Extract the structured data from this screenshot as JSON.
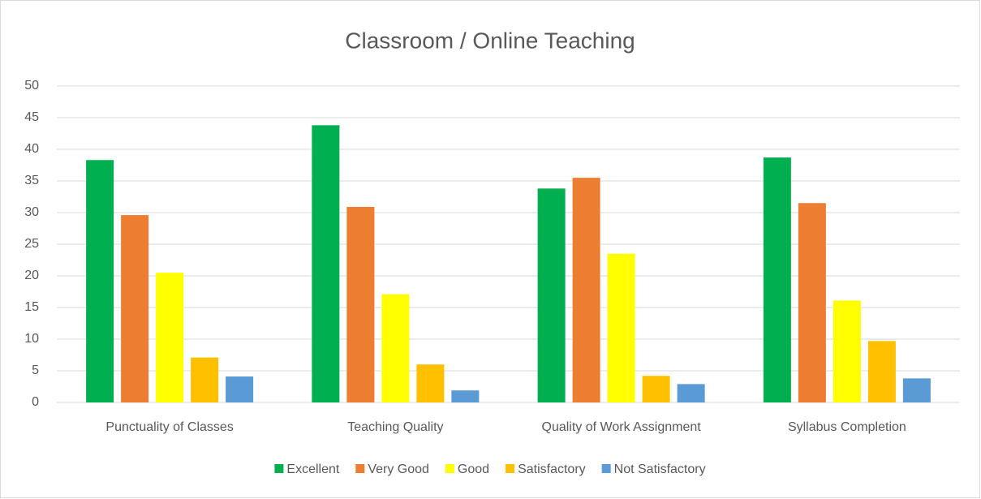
{
  "chart_data": {
    "type": "bar",
    "title": "Classroom / Online Teaching",
    "categories": [
      "Punctuality of Classes",
      "Teaching Quality",
      "Quality of Work Assignment",
      "Syllabus Completion"
    ],
    "series": [
      {
        "name": "Excellent",
        "color": "#00b050",
        "values": [
          38.3,
          43.8,
          33.8,
          38.7
        ]
      },
      {
        "name": "Very Good",
        "color": "#ed7d31",
        "values": [
          29.6,
          30.9,
          35.5,
          31.5
        ]
      },
      {
        "name": "Good",
        "color": "#ffff00",
        "values": [
          20.5,
          17.1,
          23.5,
          16.1
        ]
      },
      {
        "name": "Satisfactory",
        "color": "#ffc000",
        "values": [
          7.1,
          6.0,
          4.2,
          9.7
        ]
      },
      {
        "name": "Not Satisfactory",
        "color": "#5b9bd5",
        "values": [
          4.1,
          1.9,
          2.9,
          3.8
        ]
      }
    ],
    "ylim": [
      0,
      50
    ],
    "yticks": [
      0,
      5,
      10,
      15,
      20,
      25,
      30,
      35,
      40,
      45,
      50
    ],
    "grid": true,
    "legend": "bottom"
  }
}
